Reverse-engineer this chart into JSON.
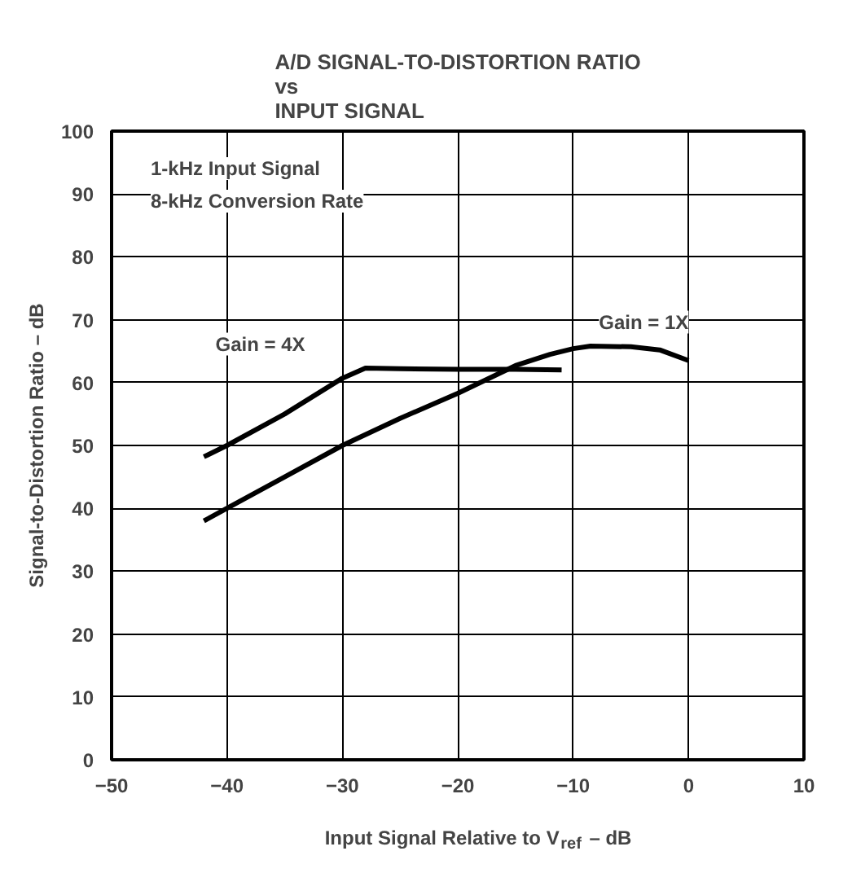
{
  "chart_data": {
    "type": "line",
    "title": "A/D SIGNAL-TO-DISTORTION RATIO\nvs\nINPUT SIGNAL",
    "xlabel": "Input Signal Relative to V$_{ref}$ – dB",
    "ylabel": "Signal-to-Distortion Ratio – dB",
    "annotations": [
      "1-kHz Input Signal",
      "8-kHz Conversion Rate"
    ],
    "series": [
      {
        "name": "Gain = 4X",
        "color": "#000000",
        "x": [
          -42,
          -40,
          -35,
          -30,
          -28,
          -25,
          -20,
          -15,
          -11
        ],
        "values": [
          48.2,
          50,
          55,
          60.7,
          62.3,
          62.2,
          62.1,
          62.1,
          62
        ]
      },
      {
        "name": "Gain = 1X",
        "color": "#000000",
        "x": [
          -42,
          -40,
          -35,
          -30,
          -25,
          -20,
          -15,
          -12,
          -10,
          -8.5,
          -5,
          -2.5,
          0
        ],
        "values": [
          38,
          40,
          45,
          50,
          54.3,
          58.3,
          62.7,
          64.5,
          65.4,
          65.8,
          65.7,
          65.2,
          63.5
        ]
      }
    ],
    "xlim": [
      -50,
      10
    ],
    "ylim": [
      0,
      100
    ],
    "xticks": [
      -50,
      -40,
      -30,
      -20,
      -10,
      0,
      10
    ],
    "yticks": [
      0,
      10,
      20,
      30,
      40,
      50,
      60,
      70,
      80,
      90,
      100
    ],
    "grid": true,
    "line_style": "solid",
    "marker": "none"
  }
}
